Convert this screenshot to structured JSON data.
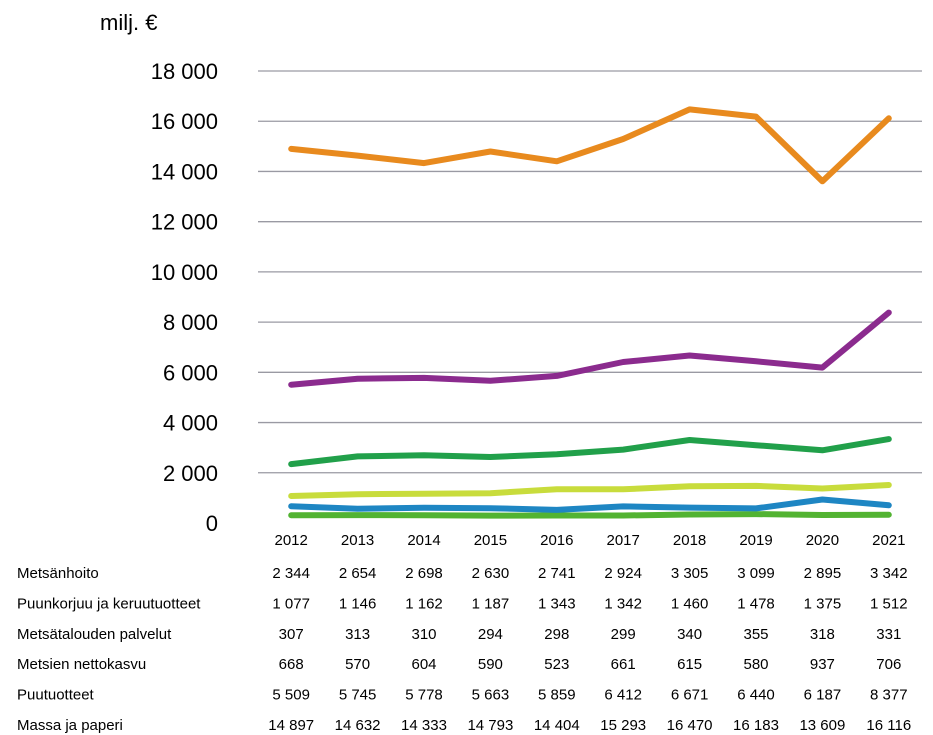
{
  "chart_data": {
    "type": "line",
    "unit_label": "milj. €",
    "categories": [
      "2012",
      "2013",
      "2014",
      "2015",
      "2016",
      "2017",
      "2018",
      "2019",
      "2020",
      "2021"
    ],
    "ylim": [
      0,
      18000
    ],
    "y_ticks": [
      {
        "value": 0,
        "label": "0"
      },
      {
        "value": 2000,
        "label": "2 000"
      },
      {
        "value": 4000,
        "label": "4 000"
      },
      {
        "value": 6000,
        "label": "6 000"
      },
      {
        "value": 8000,
        "label": "8 000"
      },
      {
        "value": 10000,
        "label": "10 000"
      },
      {
        "value": 12000,
        "label": "12 000"
      },
      {
        "value": 14000,
        "label": "14 000"
      },
      {
        "value": 16000,
        "label": "16 000"
      },
      {
        "value": 18000,
        "label": "18 000"
      }
    ],
    "grid": true,
    "series": [
      {
        "name": "Metsänhoito",
        "color": "#21a04a",
        "values": [
          2344,
          2654,
          2698,
          2630,
          2741,
          2924,
          3305,
          3099,
          2895,
          3342
        ],
        "labels": [
          "2 344",
          "2 654",
          "2 698",
          "2 630",
          "2 741",
          "2 924",
          "3 305",
          "3 099",
          "2 895",
          "3 342"
        ]
      },
      {
        "name": "Puunkorjuu ja keruutuotteet",
        "color": "#c8dc3c",
        "values": [
          1077,
          1146,
          1162,
          1187,
          1343,
          1342,
          1460,
          1478,
          1375,
          1512
        ],
        "labels": [
          "1 077",
          "1 146",
          "1 162",
          "1 187",
          "1 343",
          "1 342",
          "1 460",
          "1 478",
          "1 375",
          "1 512"
        ]
      },
      {
        "name": "Metsätalouden palvelut",
        "color": "#52b332",
        "values": [
          307,
          313,
          310,
          294,
          298,
          299,
          340,
          355,
          318,
          331
        ],
        "labels": [
          "307",
          "313",
          "310",
          "294",
          "298",
          "299",
          "340",
          "355",
          "318",
          "331"
        ]
      },
      {
        "name": "Metsien nettokasvu",
        "color": "#1e86c3",
        "values": [
          668,
          570,
          604,
          590,
          523,
          661,
          615,
          580,
          937,
          706
        ],
        "labels": [
          "668",
          "570",
          "604",
          "590",
          "523",
          "661",
          "615",
          "580",
          "937",
          "706"
        ]
      },
      {
        "name": "Puutuotteet",
        "color": "#8b2b8e",
        "values": [
          5509,
          5745,
          5778,
          5663,
          5859,
          6412,
          6671,
          6440,
          6187,
          8377
        ],
        "labels": [
          "5 509",
          "5 745",
          "5 778",
          "5 663",
          "5 859",
          "6 412",
          "6 671",
          "6 440",
          "6 187",
          "8 377"
        ]
      },
      {
        "name": "Massa ja paperi",
        "color": "#e88a1e",
        "values": [
          14897,
          14632,
          14333,
          14793,
          14404,
          15293,
          16470,
          16183,
          13609,
          16116
        ],
        "labels": [
          "14 897",
          "14 632",
          "14 333",
          "14 793",
          "14 404",
          "15 293",
          "16 470",
          "16 183",
          "13 609",
          "16 116"
        ]
      }
    ]
  }
}
